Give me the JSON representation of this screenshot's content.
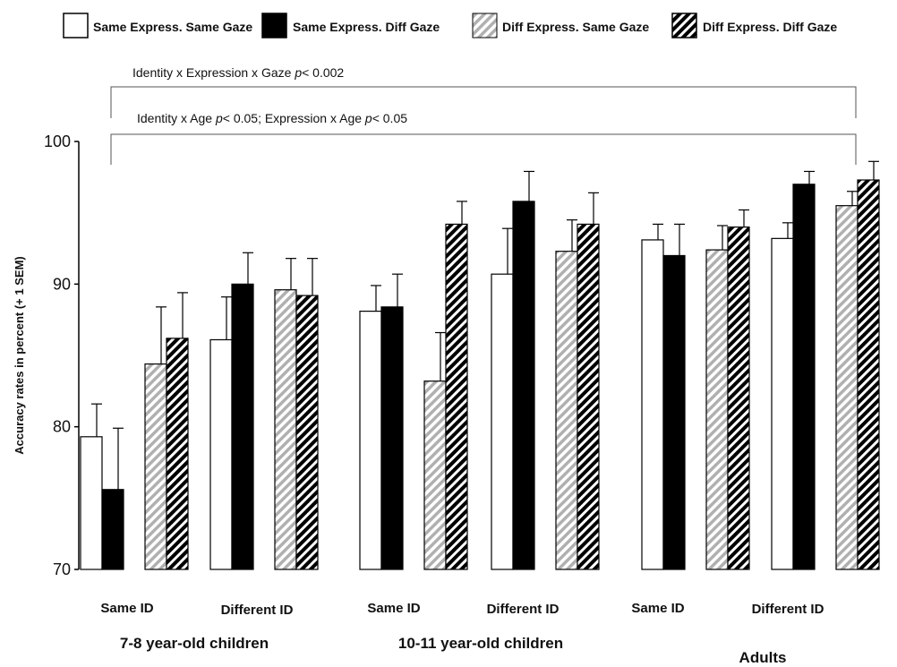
{
  "chart_data": {
    "type": "bar",
    "ylabel": "Accuracy rates in percent (+ 1 SEM)",
    "ylim": [
      70,
      100
    ],
    "yticks": [
      "70",
      "80",
      "90",
      "100"
    ],
    "legend": [
      {
        "name": "Same Express. Same Gaze",
        "pattern": "white"
      },
      {
        "name": "Same Express. Diff Gaze",
        "pattern": "black"
      },
      {
        "name": "Diff Express. Same Gaze",
        "pattern": "gray-hatch"
      },
      {
        "name": "Diff Express. Diff Gaze",
        "pattern": "black-hatch"
      }
    ],
    "annotations": [
      {
        "pre": "Identity x Expression x Gaze ",
        "p": "p",
        "post": "< 0.002"
      },
      {
        "pre": "Identity x Age ",
        "p": "p",
        "mid": "< 0.05; Expression x Age ",
        "p2": "p",
        "post": "< 0.05"
      }
    ],
    "age_groups": [
      "7-8 year-old children",
      "10-11 year-old children",
      "Adults"
    ],
    "conditions": [
      "Same ID",
      "Different ID",
      "Same ID",
      "Different ID",
      "Same ID",
      "Different ID"
    ],
    "series": [
      {
        "name": "Same Express. Same Gaze",
        "values": [
          79.3,
          86.1,
          88.1,
          90.7,
          93.1,
          93.2
        ],
        "errors": [
          2.3,
          3.0,
          1.8,
          3.2,
          1.1,
          1.1
        ]
      },
      {
        "name": "Same Express. Diff Gaze",
        "values": [
          75.6,
          90.0,
          88.4,
          95.8,
          92.0,
          97.0
        ],
        "errors": [
          4.3,
          2.2,
          2.3,
          2.1,
          2.2,
          0.9
        ]
      },
      {
        "name": "Diff Express. Same Gaze",
        "values": [
          84.4,
          89.6,
          83.2,
          92.3,
          92.4,
          95.5
        ],
        "errors": [
          4.0,
          2.2,
          3.4,
          2.2,
          1.7,
          1.0
        ]
      },
      {
        "name": "Diff Express. Diff Gaze",
        "values": [
          86.2,
          89.2,
          94.2,
          94.2,
          94.0,
          97.3
        ],
        "errors": [
          3.2,
          2.6,
          1.6,
          2.2,
          1.2,
          1.3
        ]
      }
    ],
    "colors": {
      "black": "#000000",
      "white": "#ffffff",
      "hatch_gray": "#b0b0b0",
      "axis": "#000000"
    }
  }
}
